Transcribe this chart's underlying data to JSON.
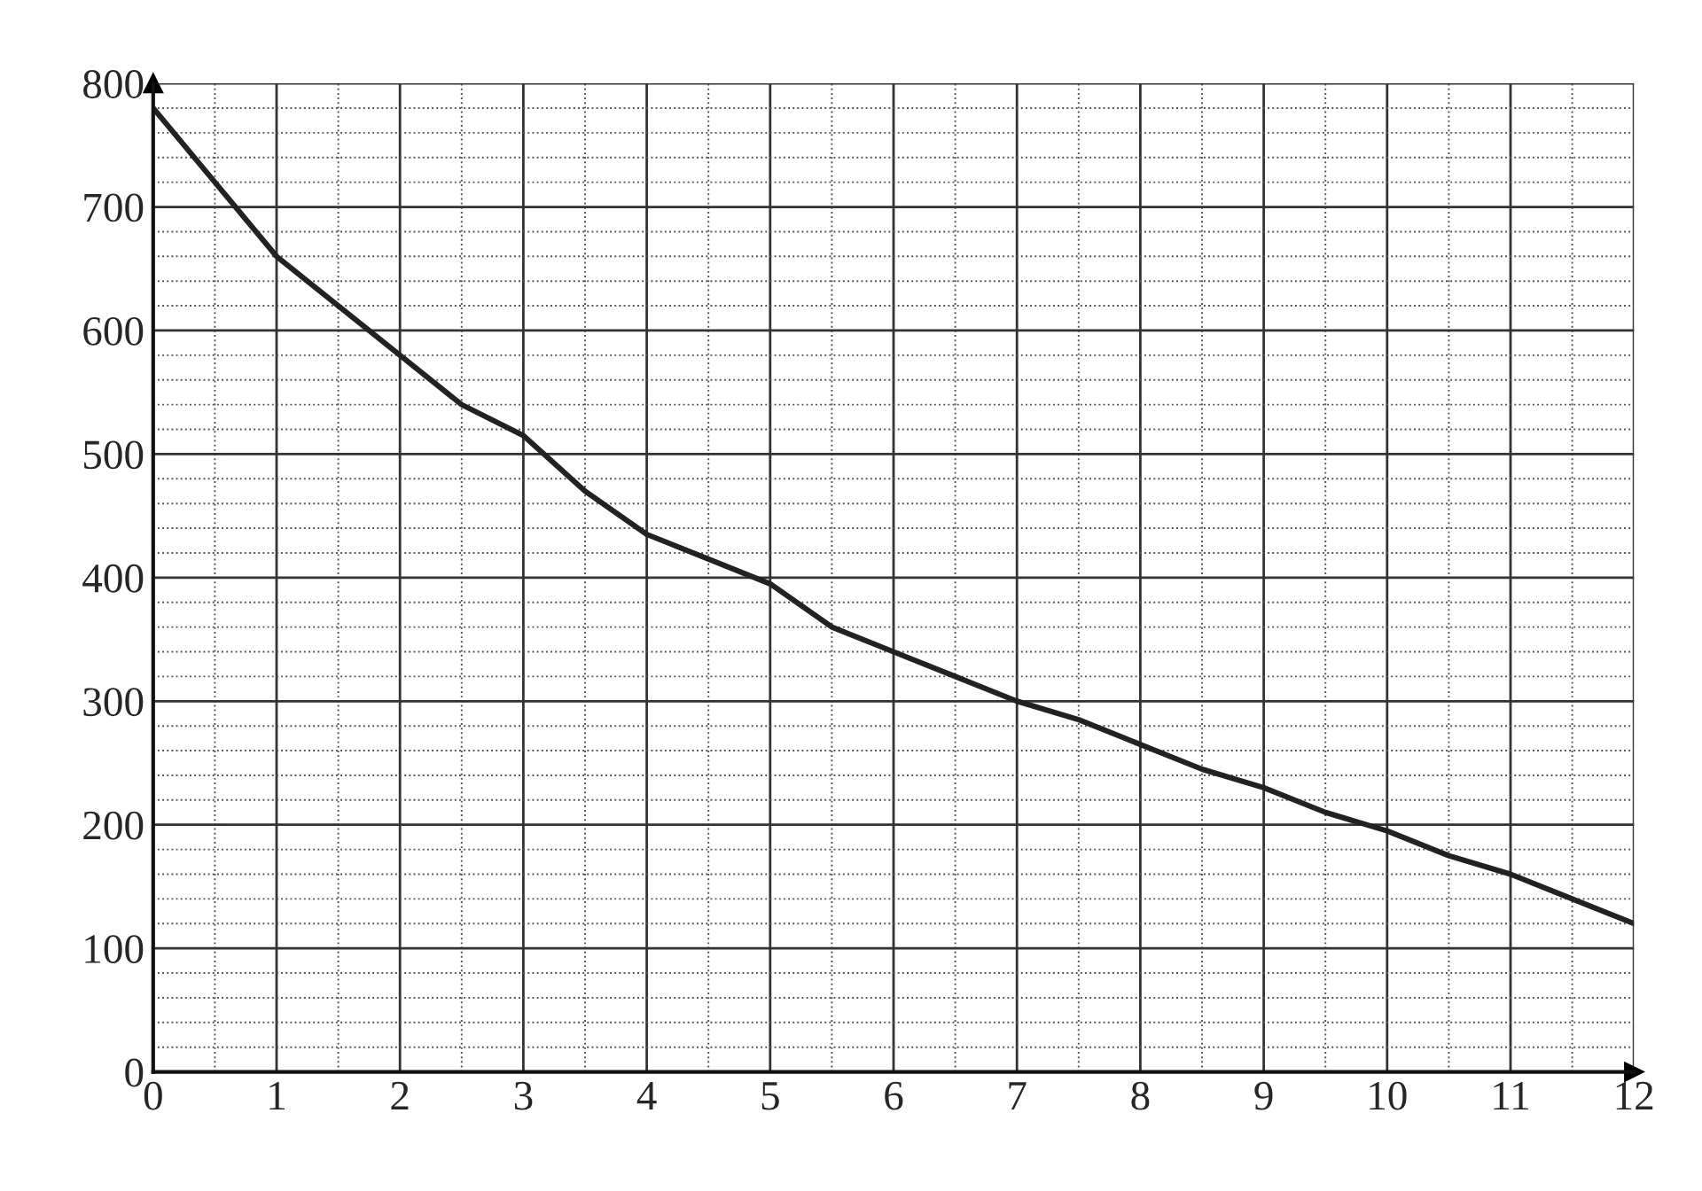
{
  "chart_data": {
    "type": "line",
    "x": [
      0,
      0.5,
      1,
      1.5,
      2,
      2.5,
      3,
      3.5,
      4,
      4.5,
      5,
      5.5,
      6,
      6.5,
      7,
      7.5,
      8,
      8.5,
      9,
      9.5,
      10,
      10.5,
      11,
      11.5,
      12
    ],
    "series": [
      {
        "color": "#222222",
        "values": [
          780,
          720,
          660,
          620,
          580,
          540,
          515,
          470,
          435,
          415,
          395,
          360,
          340,
          320,
          300,
          285,
          265,
          245,
          230,
          210,
          195,
          175,
          160,
          140,
          120
        ]
      }
    ],
    "xlim": [
      0,
      12
    ],
    "ylim": [
      0,
      800
    ],
    "xticks": [
      0,
      1,
      2,
      3,
      4,
      5,
      6,
      7,
      8,
      9,
      10,
      11,
      12
    ],
    "yticks": [
      0,
      100,
      200,
      300,
      400,
      500,
      600,
      700,
      800
    ],
    "grid": true,
    "marker": "none",
    "line_style": "solid"
  }
}
